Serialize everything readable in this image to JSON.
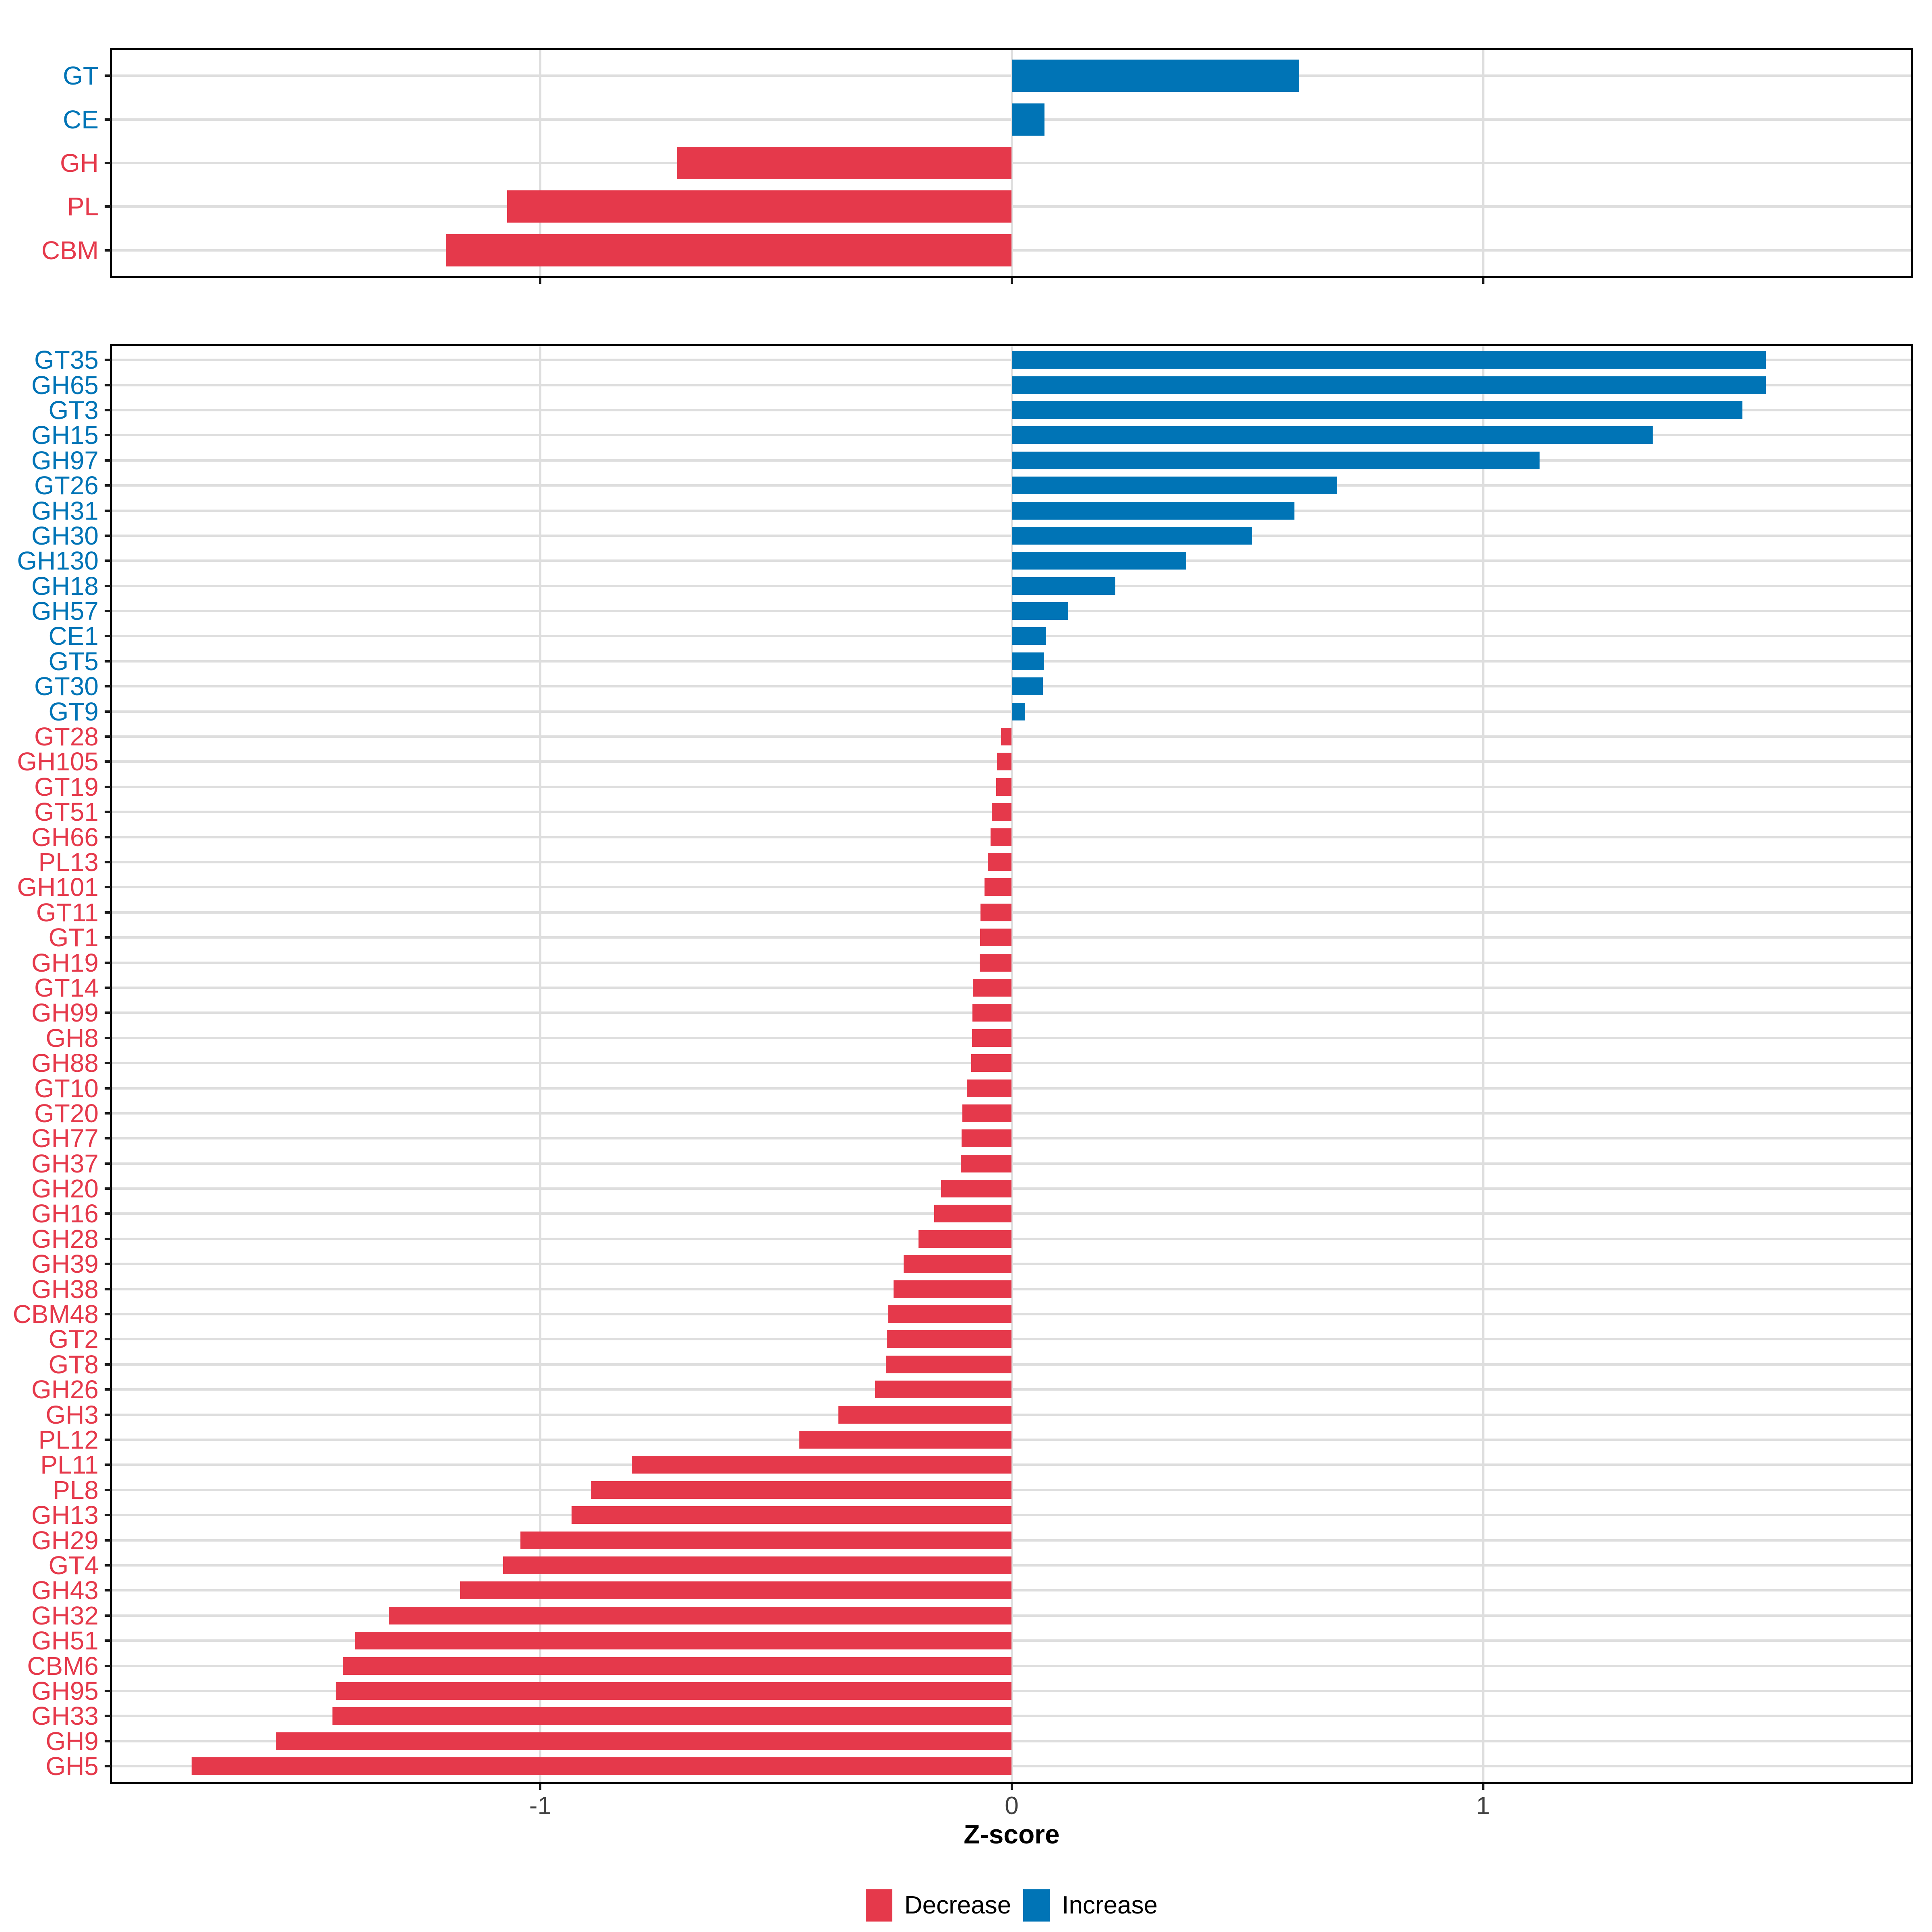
{
  "figure": {
    "background": "#ffffff",
    "description": "Two-panel horizontal bar chart of Z-scores for CAZyme classes (top) and families (bottom)"
  },
  "colors": {
    "increase": "#0074b6",
    "decrease": "#e5394b",
    "grid": "#dedede",
    "panel_border": "#000000",
    "tick_mark": "#1a1a1a",
    "tick_text": "#404040",
    "axis_title_text": "#000000"
  },
  "axis": {
    "xlabel": "Z-score",
    "ticks": [
      {
        "label": "-1",
        "value": -1
      },
      {
        "label": "0",
        "value": 0
      },
      {
        "label": "1",
        "value": 1
      }
    ],
    "xlim": [
      -1.908,
      1.908
    ]
  },
  "legend": {
    "items": [
      {
        "label": "Decrease",
        "color": "#e5394b"
      },
      {
        "label": "Increase",
        "color": "#0074b6"
      }
    ]
  },
  "chart_data": [
    {
      "id": "top",
      "type": "bar",
      "orientation": "horizontal",
      "title": "",
      "xlabel": "Z-score",
      "xlim": [
        -1.908,
        1.908
      ],
      "xticks": [
        -1,
        0,
        1
      ],
      "grid": "major-only",
      "legend_position": "bottom",
      "categories": [
        "GT",
        "CE",
        "GH",
        "PL",
        "CBM"
      ],
      "values": [
        0.61,
        0.07,
        -0.71,
        -1.07,
        -1.2
      ]
    },
    {
      "id": "bottom",
      "type": "bar",
      "orientation": "horizontal",
      "title": "",
      "xlabel": "Z-score",
      "xlim": [
        -1.908,
        1.908
      ],
      "xticks": [
        -1,
        0,
        1
      ],
      "grid": "major-only",
      "legend_position": "bottom",
      "categories": [
        "GT35",
        "GH65",
        "GT3",
        "GH15",
        "GH97",
        "GT26",
        "GH31",
        "GH30",
        "GH130",
        "GH18",
        "GH57",
        "CE1",
        "GT5",
        "GT30",
        "GT9",
        "GT28",
        "GH105",
        "GT19",
        "GT51",
        "GH66",
        "PL13",
        "GH101",
        "GT11",
        "GT1",
        "GH19",
        "GT14",
        "GH99",
        "GH8",
        "GH88",
        "GT10",
        "GT20",
        "GH77",
        "GH37",
        "GH20",
        "GH16",
        "GH28",
        "GH39",
        "GH38",
        "CBM48",
        "GT2",
        "GT8",
        "GH26",
        "GH3",
        "PL12",
        "PL11",
        "PL8",
        "GH13",
        "GH29",
        "GT4",
        "GH43",
        "GH32",
        "GH51",
        "CBM6",
        "GH95",
        "GH33",
        "GH9",
        "GH5"
      ],
      "values": [
        1.6,
        1.6,
        1.55,
        1.36,
        1.12,
        0.69,
        0.6,
        0.51,
        0.37,
        0.22,
        0.12,
        0.073,
        0.069,
        0.066,
        0.029,
        -0.023,
        -0.031,
        -0.033,
        -0.042,
        -0.045,
        -0.051,
        -0.058,
        -0.066,
        -0.067,
        -0.068,
        -0.082,
        -0.083,
        -0.084,
        -0.086,
        -0.095,
        -0.105,
        -0.106,
        -0.108,
        -0.15,
        -0.164,
        -0.198,
        -0.229,
        -0.251,
        -0.262,
        -0.265,
        -0.267,
        -0.29,
        -0.368,
        -0.45,
        -0.806,
        -0.893,
        -0.934,
        -1.042,
        -1.079,
        -1.17,
        -1.321,
        -1.393,
        -1.419,
        -1.434,
        -1.441,
        -1.561,
        -1.74
      ]
    }
  ]
}
